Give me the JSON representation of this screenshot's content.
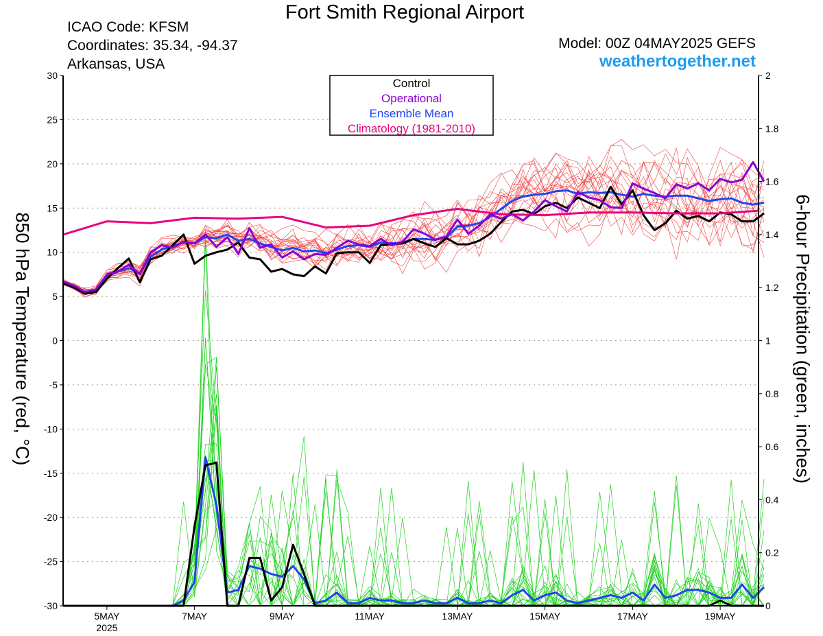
{
  "header": {
    "title": "Fort Smith Regional Airport",
    "icao": "ICAO Code: KFSM",
    "coordinates": "Coordinates: 35.34, -94.37",
    "location": "Arkansas, USA",
    "model": "Model: 00Z 04MAY2025 GEFS",
    "site": "weathertogether.net"
  },
  "chart_data": {
    "type": "line",
    "xlabel": "",
    "ylabel": "850 hPa Temperature (red, °C)",
    "ylabel_right": "6-hour Precipitation (green, inches)",
    "xlim": [
      0,
      63.5
    ],
    "x_unit": "6-hour steps from 00Z 04MAY2025",
    "ylim": [
      -30,
      30
    ],
    "ylim_right": [
      0,
      2
    ],
    "y_ticks": [
      -30,
      -25,
      -20,
      -15,
      -10,
      -5,
      0,
      5,
      10,
      15,
      20,
      25,
      30
    ],
    "y_ticks_right": [
      0,
      0.2,
      0.4,
      0.6,
      0.8,
      1,
      1.2,
      1.4,
      1.6,
      1.8,
      2
    ],
    "x_ticks": [
      {
        "x": 4,
        "label": "5MAY",
        "sub": "2025"
      },
      {
        "x": 12,
        "label": "7MAY"
      },
      {
        "x": 20,
        "label": "9MAY"
      },
      {
        "x": 28,
        "label": "11MAY"
      },
      {
        "x": 36,
        "label": "13MAY"
      },
      {
        "x": 44,
        "label": "15MAY"
      },
      {
        "x": 52,
        "label": "17MAY"
      },
      {
        "x": 60,
        "label": "19MAY"
      }
    ],
    "grid": "dotted horizontal",
    "legend": {
      "position": "top-center",
      "entries": [
        {
          "label": "Control",
          "color": "#000000"
        },
        {
          "label": "Operational",
          "color": "#8a00d4"
        },
        {
          "label": "Ensemble Mean",
          "color": "#2244ee"
        },
        {
          "label": "Climatology (1981-2010)",
          "color": "#e8007e"
        }
      ]
    },
    "colors": {
      "control": "#000000",
      "operational": "#8a00d4",
      "ensemble_mean": "#2244ee",
      "climatology": "#e8007e",
      "members_temp": "#f03c3c",
      "members_precip": "#1ed21e"
    },
    "series": [
      {
        "name": "Control",
        "axis": "left",
        "values": [
          6.5,
          6.0,
          5.3,
          5.5,
          7.0,
          8.2,
          9.3,
          6.6,
          9.2,
          9.6,
          10.8,
          12.0,
          8.7,
          9.6,
          10.0,
          10.3,
          11.1,
          9.4,
          9.2,
          7.8,
          8.1,
          7.5,
          7.3,
          8.4,
          7.6,
          9.9,
          10.0,
          10.0,
          8.8,
          10.8,
          10.9,
          11.0,
          11.5,
          11.0,
          10.6,
          11.6,
          10.9,
          10.9,
          11.3,
          12.1,
          13.4,
          14.6,
          14.8,
          14.3,
          15.2,
          15.6,
          15.0,
          16.2,
          15.6,
          15.0,
          17.4,
          15.4,
          17.0,
          14.2,
          12.5,
          13.3,
          14.7,
          13.8,
          14.1,
          13.5,
          14.5,
          14.3,
          13.5,
          13.5,
          14.4
        ]
      },
      {
        "name": "Operational",
        "axis": "left",
        "values": [
          6.7,
          6.2,
          5.5,
          5.8,
          7.5,
          7.8,
          8.6,
          7.5,
          10.0,
          10.8,
          10.5,
          11.2,
          11.0,
          12.0,
          10.6,
          11.7,
          9.8,
          12.7,
          10.5,
          10.9,
          9.4,
          10.1,
          9.2,
          9.8,
          9.7,
          10.5,
          11.3,
          10.9,
          10.7,
          11.5,
          10.8,
          11.2,
          12.6,
          12.1,
          11.4,
          11.8,
          13.7,
          12.1,
          13.0,
          14.3,
          13.8,
          14.3,
          13.6,
          14.6,
          15.9,
          15.2,
          14.6,
          16.8,
          16.2,
          15.9,
          15.1,
          15.0,
          17.8,
          17.2,
          16.7,
          16.1,
          17.7,
          17.2,
          17.8,
          17.0,
          18.3,
          17.9,
          18.2,
          20.2,
          18.0
        ]
      },
      {
        "name": "Ensemble Mean",
        "axis": "left",
        "values": [
          6.6,
          6.1,
          5.5,
          5.7,
          7.3,
          7.8,
          8.2,
          7.6,
          9.5,
          10.3,
          10.7,
          11.1,
          11.0,
          11.7,
          11.6,
          12.0,
          11.3,
          11.5,
          11.0,
          10.6,
          10.2,
          10.5,
          10.1,
          10.2,
          9.9,
          10.3,
          10.7,
          10.8,
          10.6,
          11.1,
          11.0,
          11.1,
          11.5,
          11.5,
          11.4,
          11.7,
          12.9,
          13.0,
          13.3,
          14.0,
          14.9,
          15.8,
          16.3,
          16.5,
          16.6,
          16.9,
          17.0,
          16.6,
          16.8,
          16.7,
          16.8,
          16.5,
          16.3,
          16.6,
          16.4,
          16.3,
          16.4,
          16.4,
          16.1,
          15.8,
          16.0,
          16.1,
          15.6,
          15.4,
          15.6
        ]
      },
      {
        "name": "Climatology (1981-2010)",
        "axis": "left",
        "x": [
          0,
          4,
          8,
          12,
          16,
          20,
          24,
          28,
          32,
          36,
          40,
          44,
          48,
          52,
          56,
          60,
          63.5
        ],
        "values": [
          12.0,
          13.5,
          13.3,
          13.9,
          13.8,
          14.0,
          12.8,
          13.0,
          14.2,
          14.9,
          14.3,
          14.2,
          14.5,
          14.5,
          14.4,
          14.4,
          14.7
        ]
      },
      {
        "name": "Control",
        "axis": "right",
        "values": [
          0,
          0,
          0,
          0,
          0,
          0,
          0,
          0,
          0,
          0,
          0,
          0,
          0.3,
          0.53,
          0.54,
          0,
          0,
          0.18,
          0.18,
          0.02,
          0.07,
          0.23,
          0.12,
          0,
          0,
          0,
          0,
          0,
          0,
          0,
          0,
          0,
          0,
          0,
          0,
          0,
          0,
          0,
          0,
          0,
          0,
          0,
          0,
          0,
          0,
          0,
          0,
          0,
          0,
          0,
          0,
          0,
          0,
          0,
          0,
          0,
          0,
          0,
          0,
          0,
          0.02,
          0,
          0,
          0,
          0
        ]
      },
      {
        "name": "Ensemble Mean",
        "axis": "right",
        "values": [
          0,
          0,
          0,
          0,
          0,
          0,
          0,
          0,
          0,
          0,
          0,
          0.02,
          0.09,
          0.56,
          0.38,
          0.05,
          0.06,
          0.15,
          0.14,
          0.12,
          0.11,
          0.15,
          0.1,
          0.01,
          0.02,
          0.05,
          0.01,
          0.01,
          0.03,
          0.02,
          0.02,
          0.01,
          0.01,
          0.02,
          0.01,
          0.01,
          0.03,
          0.01,
          0.01,
          0.02,
          0.01,
          0.04,
          0.06,
          0.02,
          0.04,
          0.05,
          0.02,
          0.01,
          0.02,
          0.03,
          0.04,
          0.03,
          0.05,
          0.02,
          0.08,
          0.03,
          0.04,
          0.06,
          0.06,
          0.05,
          0.03,
          0.03,
          0.08,
          0.03,
          0.07
        ]
      }
    ]
  }
}
